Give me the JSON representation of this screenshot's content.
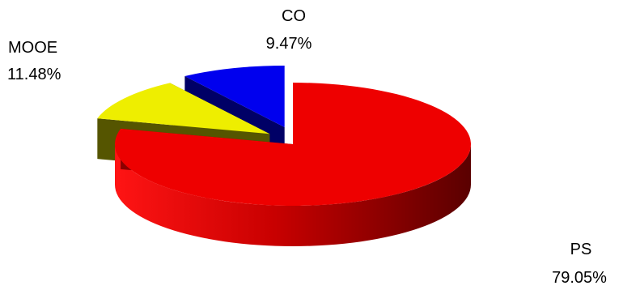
{
  "chart_data": {
    "type": "pie",
    "style": "3d-exploded",
    "title": "",
    "legend": "none",
    "slices": [
      {
        "label": "PS",
        "value": 79.05,
        "value_label": "79.05%",
        "color": "#ee0000"
      },
      {
        "label": "MOOE",
        "value": 11.48,
        "value_label": "11.48%",
        "color": "#eeee00"
      },
      {
        "label": "CO",
        "value": 9.47,
        "value_label": "9.47%",
        "color": "#0000ee"
      }
    ]
  }
}
